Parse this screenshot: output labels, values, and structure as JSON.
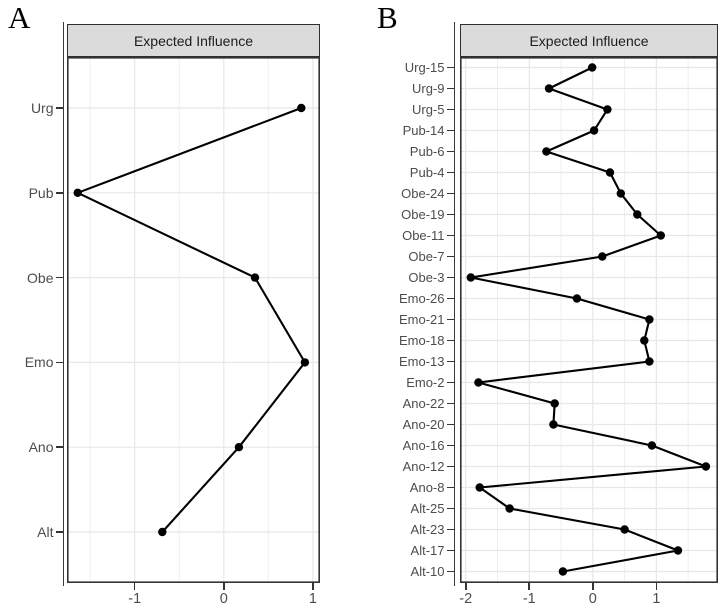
{
  "figure_type": "two-panel network centrality plot (dot-and-line, ggplot style)",
  "chart_data": [
    {
      "type": "line",
      "style": "centrality-dot-line",
      "panel_label": "A",
      "title": "Expected Influence",
      "categories": [
        "Urg",
        "Pub",
        "Obe",
        "Emo",
        "Ano",
        "Alt"
      ],
      "values": [
        0.87,
        -1.64,
        0.35,
        0.91,
        0.17,
        -0.69
      ],
      "xlabel": "",
      "ylabel": "",
      "xlim": [
        -1.76,
        1.08
      ],
      "x_ticks": [
        -1,
        0,
        1
      ],
      "x_minor_gridlines": [
        -1.5,
        -0.5,
        0.5
      ],
      "grid": true,
      "legend": false
    },
    {
      "type": "line",
      "style": "centrality-dot-line",
      "panel_label": "B",
      "title": "Expected Influence",
      "categories": [
        "Urg-15",
        "Urg-9",
        "Urg-5",
        "Pub-14",
        "Pub-6",
        "Pub-4",
        "Obe-24",
        "Obe-19",
        "Obe-11",
        "Obe-7",
        "Obe-3",
        "Emo-26",
        "Emo-21",
        "Emo-18",
        "Emo-13",
        "Emo-2",
        "Ano-22",
        "Ano-20",
        "Ano-16",
        "Ano-12",
        "Ano-8",
        "Alt-25",
        "Alt-23",
        "Alt-17",
        "Alt-10"
      ],
      "values": [
        -0.01,
        -0.69,
        0.23,
        0.02,
        -0.73,
        0.27,
        0.44,
        0.7,
        1.07,
        0.15,
        -1.92,
        -0.25,
        0.89,
        0.81,
        0.89,
        -1.8,
        -0.6,
        -0.62,
        0.93,
        1.78,
        -1.78,
        -1.31,
        0.5,
        1.34,
        -0.47
      ],
      "xlabel": "",
      "ylabel": "",
      "xlim": [
        -2.09,
        1.97
      ],
      "x_ticks": [
        -2,
        -1,
        0,
        1
      ],
      "x_minor_gridlines": [
        -1.5,
        -0.5,
        0.5,
        1.5
      ],
      "grid": true,
      "legend": false
    }
  ],
  "colors": {
    "data_line": "#000000",
    "data_point": "#000000",
    "strip_background": "#dbdbdb",
    "panel_border": "#333333",
    "gridline_major": "#e7e7e7",
    "gridline_minor": "#efefef",
    "axis_text": "#4d4d4d"
  }
}
